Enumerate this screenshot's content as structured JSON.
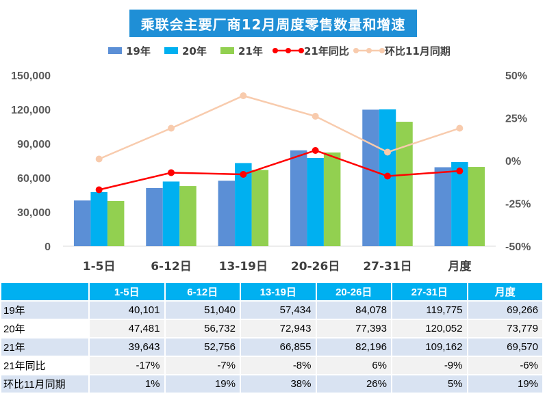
{
  "title": "乘联会主要厂商12月周度零售数量和增速",
  "colors": {
    "series_19": "#5b8fd6",
    "series_20": "#00b0f0",
    "series_21": "#92d050",
    "yoy": "#ff0000",
    "mom": "#f8cbad",
    "table_header": "#00b0f0"
  },
  "chart_data": {
    "type": "bar",
    "categories": [
      "1-5日",
      "6-12日",
      "13-19日",
      "20-26日",
      "27-31日",
      "月度"
    ],
    "series": [
      {
        "name": "19年",
        "kind": "bar",
        "axis": "left",
        "values": [
          40101,
          51040,
          57434,
          84078,
          119775,
          69266
        ]
      },
      {
        "name": "20年",
        "kind": "bar",
        "axis": "left",
        "values": [
          47481,
          56732,
          72943,
          77393,
          120052,
          73779
        ]
      },
      {
        "name": "21年",
        "kind": "bar",
        "axis": "left",
        "values": [
          39643,
          52756,
          66855,
          82196,
          109162,
          69570
        ]
      },
      {
        "name": "21年同比",
        "kind": "line",
        "axis": "right",
        "values": [
          -17,
          -7,
          -8,
          6,
          -9,
          -6
        ]
      },
      {
        "name": "环比11月同期",
        "kind": "line",
        "axis": "right",
        "values": [
          1,
          19,
          38,
          26,
          5,
          19
        ]
      }
    ],
    "y_left": {
      "min": 0,
      "max": 150000,
      "ticks": [
        "0",
        "30,000",
        "60,000",
        "90,000",
        "120,000",
        "150,000"
      ],
      "tick_values": [
        0,
        30000,
        60000,
        90000,
        120000,
        150000
      ]
    },
    "y_right": {
      "min": -50,
      "max": 50,
      "ticks": [
        "-50%",
        "-25%",
        "0%",
        "25%",
        "50%"
      ],
      "tick_values": [
        -50,
        -25,
        0,
        25,
        50
      ]
    },
    "legend_position": "top",
    "grid": false
  },
  "table": {
    "header": [
      "1-5日",
      "6-12日",
      "13-19日",
      "20-26日",
      "27-31日",
      "月度"
    ],
    "rows": [
      {
        "label": "19年",
        "cells": [
          "40,101",
          "51,040",
          "57,434",
          "84,078",
          "119,775",
          "69,266"
        ]
      },
      {
        "label": "20年",
        "cells": [
          "47,481",
          "56,732",
          "72,943",
          "77,393",
          "120,052",
          "73,779"
        ]
      },
      {
        "label": "21年",
        "cells": [
          "39,643",
          "52,756",
          "66,855",
          "82,196",
          "109,162",
          "69,570"
        ]
      },
      {
        "label": "21年同比",
        "cells": [
          "-17%",
          "-7%",
          "-8%",
          "6%",
          "-9%",
          "-6%"
        ]
      },
      {
        "label": "环比11月同期",
        "cells": [
          "1%",
          "19%",
          "38%",
          "26%",
          "5%",
          "19%"
        ]
      }
    ]
  }
}
